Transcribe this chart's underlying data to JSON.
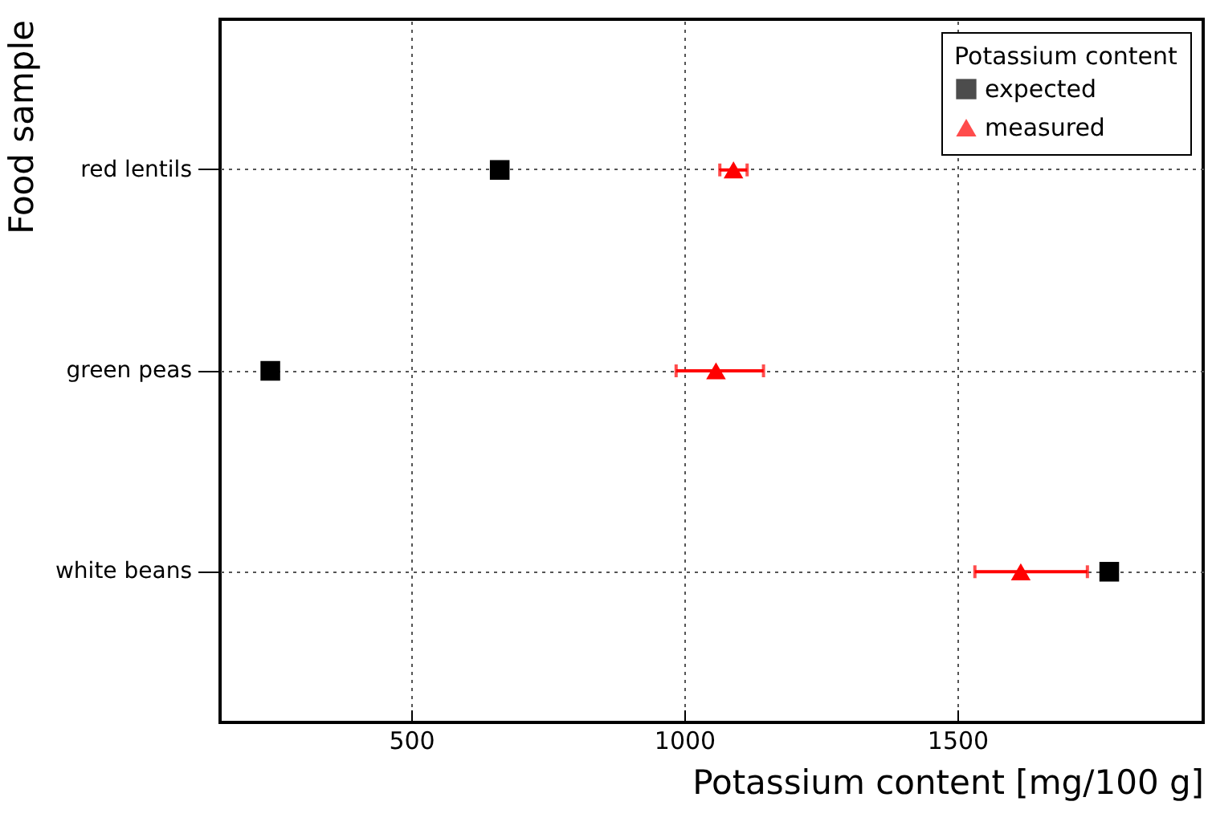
{
  "chart_data": {
    "type": "scatter",
    "orientation": "horizontal",
    "xlabel": "Potassium content [mg/100 g]",
    "ylabel": "Food sample",
    "legend_title": "Potassium content",
    "legend": "top right",
    "grid": true,
    "categories": [
      "red lentils",
      "green peas",
      "white beans"
    ],
    "xlim": [
      150,
      1950
    ],
    "xticks": [
      500,
      1000,
      1500
    ],
    "series": [
      {
        "name": "expected",
        "color": "#000000",
        "marker": "square",
        "values": [
          662,
          242,
          1778
        ]
      },
      {
        "name": "measured",
        "color": "#ff0000",
        "marker": "triangle",
        "values": [
          1090,
          1058,
          1616
        ],
        "errors": [
          25,
          [
            985,
            1145
          ],
          [
            1532,
            1738
          ]
        ]
      }
    ]
  }
}
